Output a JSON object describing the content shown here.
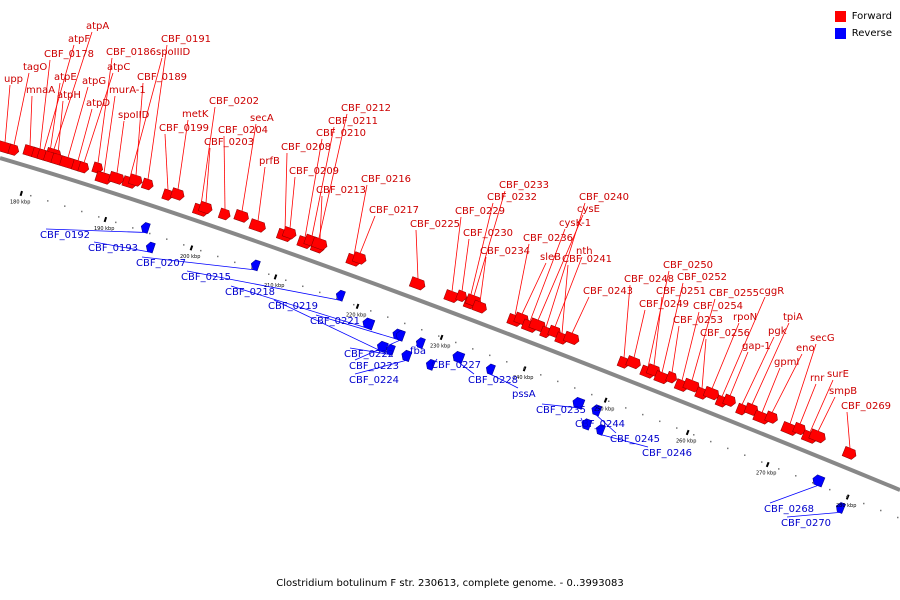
{
  "caption": "Clostridium botulinum F str. 230613, complete genome. - 0..3993083",
  "legend": [
    {
      "label": "Forward",
      "color": "#ff0000"
    },
    {
      "label": "Reverse",
      "color": "#0000ff"
    }
  ],
  "colors": {
    "forward": "#ff0000",
    "reverse": "#0000ff",
    "backbone": "#888888"
  },
  "ticks": [
    "180 kbp",
    "190 kbp",
    "200 kbp",
    "210 kbp",
    "220 kbp",
    "230 kbp",
    "240 kbp",
    "250 kbp",
    "260 kbp",
    "270 kbp",
    "280 kbp"
  ],
  "forward_genes": [
    "upp",
    "tagO",
    "mnaA",
    "CBF_0178",
    "atpF",
    "atpA",
    "atpE",
    "atpH",
    "atpG",
    "atpD",
    "atpC",
    "CBF_0186",
    "murA-1",
    "spoIID",
    "spoIIID",
    "CBF_0189",
    "CBF_0191",
    "CBF_0199",
    "metK",
    "CBF_0202",
    "CBF_0203",
    "CBF_0204",
    "secA",
    "prfB",
    "CBF_0208",
    "CBF_0209",
    "CBF_0210",
    "CBF_0211",
    "CBF_0212",
    "CBF_0213",
    "CBF_0216",
    "CBF_0217",
    "CBF_0225",
    "CBF_0229",
    "CBF_0230",
    "CBF_0232",
    "CBF_0233",
    "CBF_0234",
    "CBF_0236",
    "sleB",
    "cysK-1",
    "cysE",
    "CBF_0240",
    "nth",
    "CBF_0241",
    "CBF_0243",
    "CBF_0248",
    "CBF_0249",
    "CBF_0250",
    "CBF_0251",
    "CBF_0252",
    "CBF_0253",
    "CBF_0254",
    "CBF_0255",
    "CBF_0256",
    "rpoN",
    "cggR",
    "gap-1",
    "pgk",
    "tpiA",
    "gpmI",
    "eno",
    "secG",
    "rnr",
    "surE",
    "smpB",
    "CBF_0269"
  ],
  "reverse_genes": [
    "CBF_0192",
    "CBF_0193",
    "CBF_0207",
    "CBF_0215",
    "CBF_0218",
    "CBF_0219",
    "CBF_0221",
    "CBF_0222",
    "CBF_0223",
    "CBF_0224",
    "fba",
    "CBF_0227",
    "CBF_0228",
    "pssA",
    "CBF_0235",
    "CBF_0244",
    "CBF_0245",
    "CBF_0246",
    "CBF_0268",
    "CBF_0270"
  ]
}
